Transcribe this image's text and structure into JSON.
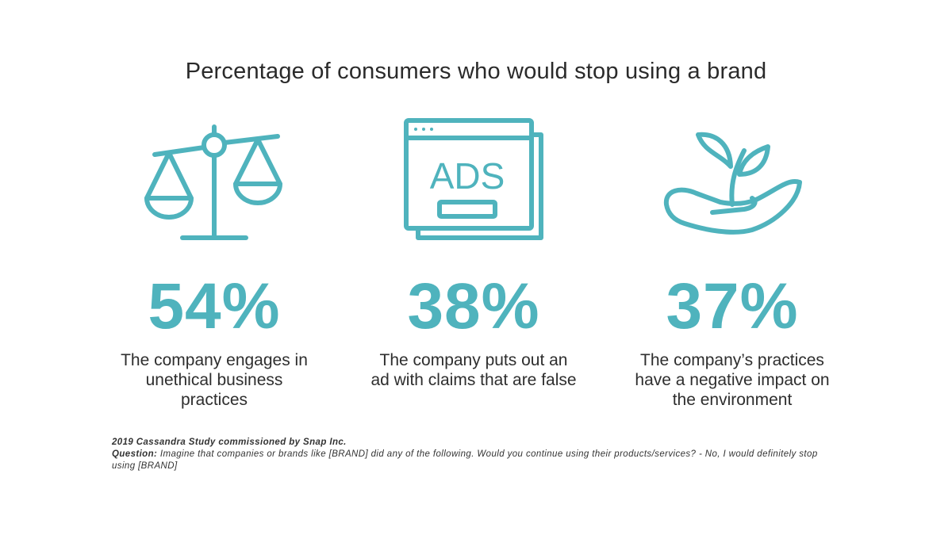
{
  "title": "Percentage of consumers who would stop using a brand",
  "accent_color": "#4fb3bd",
  "stats": [
    {
      "icon": "scales-icon",
      "value": "54%",
      "percent": 54,
      "description": "The company engages in unethical business practices"
    },
    {
      "icon": "ads-browser-icon",
      "value": "38%",
      "percent": 38,
      "description": "The company puts out an ad with claims that are false",
      "icon_text": "ADS"
    },
    {
      "icon": "plant-in-hand-icon",
      "value": "37%",
      "percent": 37,
      "description": "The company’s practices have a negative impact on the environment"
    }
  ],
  "footnote": {
    "source": "2019 Cassandra Study commissioned by Snap Inc.",
    "question_label": "Question:",
    "question_text": "Imagine that companies or brands like [BRAND] did any of the following. Would you continue using their products/services? - No, I would definitely stop using [BRAND]"
  }
}
